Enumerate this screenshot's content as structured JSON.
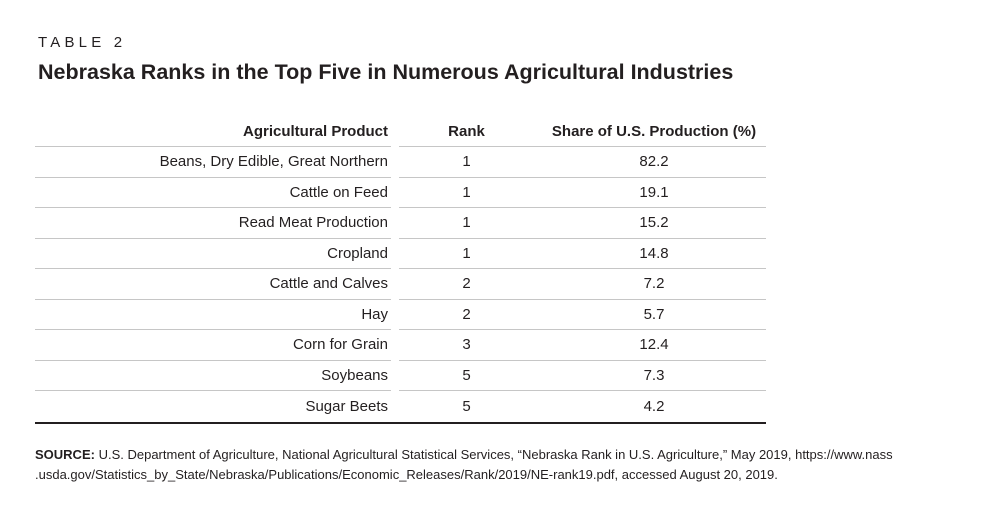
{
  "page": {
    "eyebrow": "TABLE 2",
    "title": "Nebraska Ranks in the Top Five in Numerous Agricultural Industries"
  },
  "table": {
    "headers": [
      "Agricultural Product",
      "Rank",
      "Share of U.S. Production (%)"
    ],
    "rows": [
      {
        "product": "Beans, Dry Edible, Great Northern",
        "rank": "1",
        "share": "82.2"
      },
      {
        "product": "Cattle on Feed",
        "rank": "1",
        "share": "19.1"
      },
      {
        "product": "Read Meat Production",
        "rank": "1",
        "share": "15.2"
      },
      {
        "product": "Cropland",
        "rank": "1",
        "share": "14.8"
      },
      {
        "product": "Cattle and Calves",
        "rank": "2",
        "share": "7.2"
      },
      {
        "product": "Hay",
        "rank": "2",
        "share": "5.7"
      },
      {
        "product": "Corn for Grain",
        "rank": "3",
        "share": "12.4"
      },
      {
        "product": "Soybeans",
        "rank": "5",
        "share": "7.3"
      },
      {
        "product": "Sugar Beets",
        "rank": "5",
        "share": "4.2"
      }
    ]
  },
  "source": {
    "label": "SOURCE:",
    "line1": "U.S. Department of Agriculture, National Agricultural Statistical Services, “Nebraska Rank in U.S. Agriculture,” May 2019, https://www.nass",
    "line2": ".usda.gov/Statistics_by_State/Nebraska/Publications/Economic_Releases/Rank/2019/NE-rank19.pdf, accessed August 20, 2019."
  },
  "colors": {
    "text": "#231f20",
    "row_rule": "#c6c6c6",
    "bottom_rule": "#231f20"
  }
}
